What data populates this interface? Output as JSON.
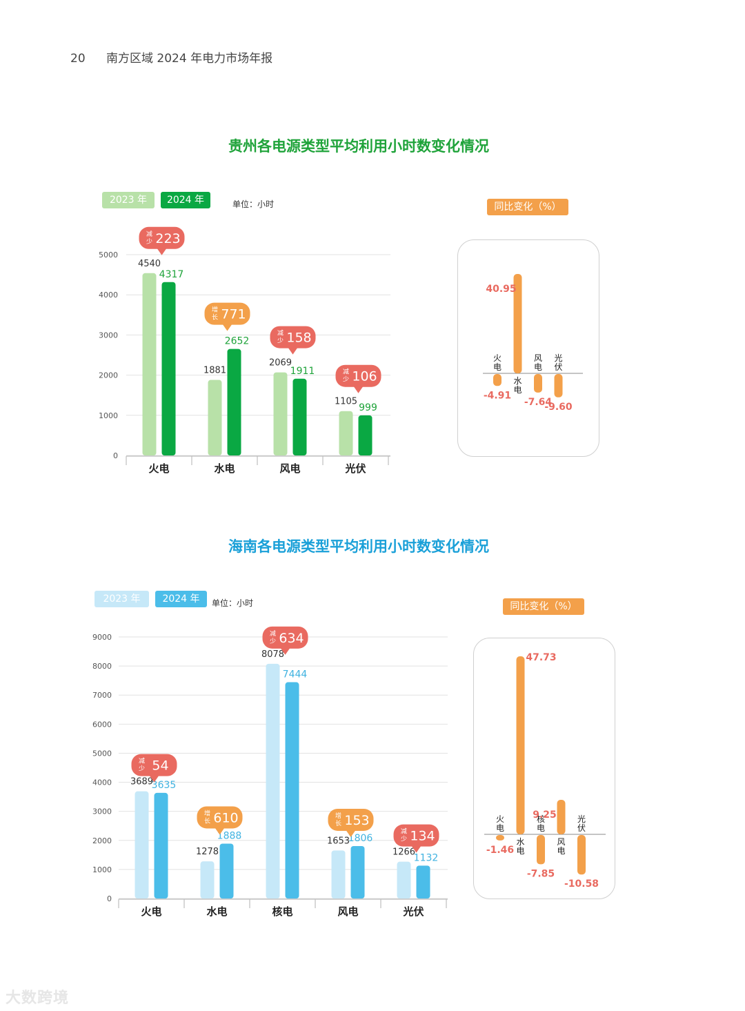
{
  "header": {
    "page_number": "20",
    "report_title": "南方区域 2024 年电力市场年报"
  },
  "guizhou": {
    "title": "贵州各电源类型平均利用小时数变化情况",
    "legend_2023": "2023 年",
    "legend_2024": "2024 年",
    "unit": "单位：小时",
    "yoy_label": "同比变化（%）"
  },
  "hainan": {
    "title": "海南各电源类型平均利用小时数变化情况",
    "legend_2023": "2023 年",
    "legend_2024": "2024 年",
    "unit": "单位：小时",
    "yoy_label": "同比变化（%）"
  },
  "watermark": "大数跨境",
  "colors": {
    "gz_title": "#1fa33a",
    "gz_2023": "#b8e1a8",
    "gz_2024": "#0aa843",
    "hn_title": "#1aa0d8",
    "hn_2023": "#c6e8f8",
    "hn_2024": "#4bbde9",
    "decrease_bubble": "#e96a60",
    "increase_bubble": "#f3a04a",
    "yoy_bar": "#f3a04a",
    "yoy_value": "#e96a60"
  },
  "chart_data": [
    {
      "type": "bar",
      "title": "贵州各电源类型平均利用小时数变化情况",
      "categories": [
        "火电",
        "水电",
        "风电",
        "光伏"
      ],
      "series": [
        {
          "name": "2023 年",
          "values": [
            4540,
            1881,
            2069,
            1105
          ]
        },
        {
          "name": "2024 年",
          "values": [
            4317,
            2652,
            1911,
            999
          ]
        }
      ],
      "y_ticks": [
        "0",
        "1000",
        "2000",
        "3000",
        "4000",
        "5000"
      ],
      "ylim": [
        0,
        5000
      ],
      "changes": [
        {
          "word1": "减",
          "word2": "少",
          "value": "223",
          "kind": "decrease"
        },
        {
          "word1": "增",
          "word2": "长",
          "value": "771",
          "kind": "increase"
        },
        {
          "word1": "减",
          "word2": "少",
          "value": "158",
          "kind": "decrease"
        },
        {
          "word1": "减",
          "word2": "少",
          "value": "106",
          "kind": "decrease"
        }
      ],
      "yoy": [
        {
          "c1": "火",
          "c2": "电",
          "value": -4.91,
          "label": "-4.91"
        },
        {
          "c1": "水",
          "c2": "电",
          "value": 40.95,
          "label": "40.95"
        },
        {
          "c1": "风",
          "c2": "电",
          "value": -7.64,
          "label": "-7.64"
        },
        {
          "c1": "光",
          "c2": "伏",
          "value": -9.6,
          "label": "-9.60"
        }
      ]
    },
    {
      "type": "bar",
      "title": "海南各电源类型平均利用小时数变化情况",
      "categories": [
        "火电",
        "水电",
        "核电",
        "风电",
        "光伏"
      ],
      "series": [
        {
          "name": "2023 年",
          "values": [
            3689,
            1278,
            8078,
            1653,
            1266
          ]
        },
        {
          "name": "2024 年",
          "values": [
            3635,
            1888,
            7444,
            1806,
            1132
          ]
        }
      ],
      "y_ticks": [
        "0",
        "1000",
        "2000",
        "3000",
        "4000",
        "5000",
        "6000",
        "7000",
        "8000",
        "9000"
      ],
      "ylim": [
        0,
        9000
      ],
      "changes": [
        {
          "word1": "减",
          "word2": "少",
          "value": "54",
          "kind": "decrease"
        },
        {
          "word1": "增",
          "word2": "长",
          "value": "610",
          "kind": "increase"
        },
        {
          "word1": "减",
          "word2": "少",
          "value": "634",
          "kind": "decrease"
        },
        {
          "word1": "增",
          "word2": "长",
          "value": "153",
          "kind": "increase"
        },
        {
          "word1": "减",
          "word2": "少",
          "value": "134",
          "kind": "decrease"
        }
      ],
      "yoy": [
        {
          "c1": "火",
          "c2": "电",
          "value": -1.46,
          "label": "-1.46"
        },
        {
          "c1": "水",
          "c2": "电",
          "value": 47.73,
          "label": "47.73"
        },
        {
          "c1": "核",
          "c2": "电",
          "value": -7.85,
          "label": "-7.85"
        },
        {
          "c1": "风",
          "c2": "电",
          "value": 9.25,
          "label": "9.25"
        },
        {
          "c1": "光",
          "c2": "伏",
          "value": -10.58,
          "label": "-10.58"
        }
      ]
    }
  ]
}
